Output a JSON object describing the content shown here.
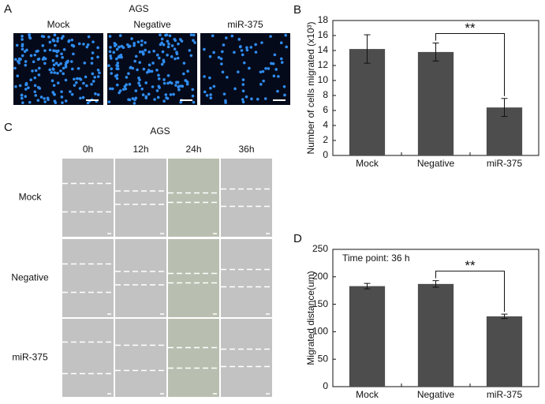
{
  "panel_a": {
    "letter": "A",
    "title": "AGS",
    "labels": [
      "Mock",
      "Negative",
      "miR-375"
    ]
  },
  "panel_c": {
    "letter": "C",
    "title": "AGS",
    "columns": [
      "0h",
      "12h",
      "24h",
      "36h"
    ],
    "rows": [
      "Mock",
      "Negative",
      "miR-375"
    ]
  },
  "chart_data": [
    {
      "type": "bar",
      "label": "B",
      "ylabel": "Number of cells migrated (x10³)",
      "categories": [
        "Mock",
        "Negative",
        "miR-375"
      ],
      "values": [
        14.2,
        13.8,
        6.4
      ],
      "errors": [
        1.9,
        1.2,
        1.2
      ],
      "color": "#4d4d4d",
      "ylim": [
        0,
        18
      ],
      "yticks": [
        0,
        2,
        4,
        6,
        8,
        10,
        12,
        14,
        16,
        18
      ],
      "significance": "**"
    },
    {
      "type": "bar",
      "label": "D",
      "ylabel": "Migrated distance(um)",
      "annotation": "Time point: 36 h",
      "categories": [
        "Mock",
        "Negative",
        "miR-375"
      ],
      "values": [
        183,
        187,
        128
      ],
      "errors": [
        5,
        6,
        4
      ],
      "color": "#4d4d4d",
      "ylim": [
        0,
        250
      ],
      "yticks": [
        0,
        50,
        100,
        150,
        200,
        250
      ],
      "significance": "**"
    }
  ]
}
